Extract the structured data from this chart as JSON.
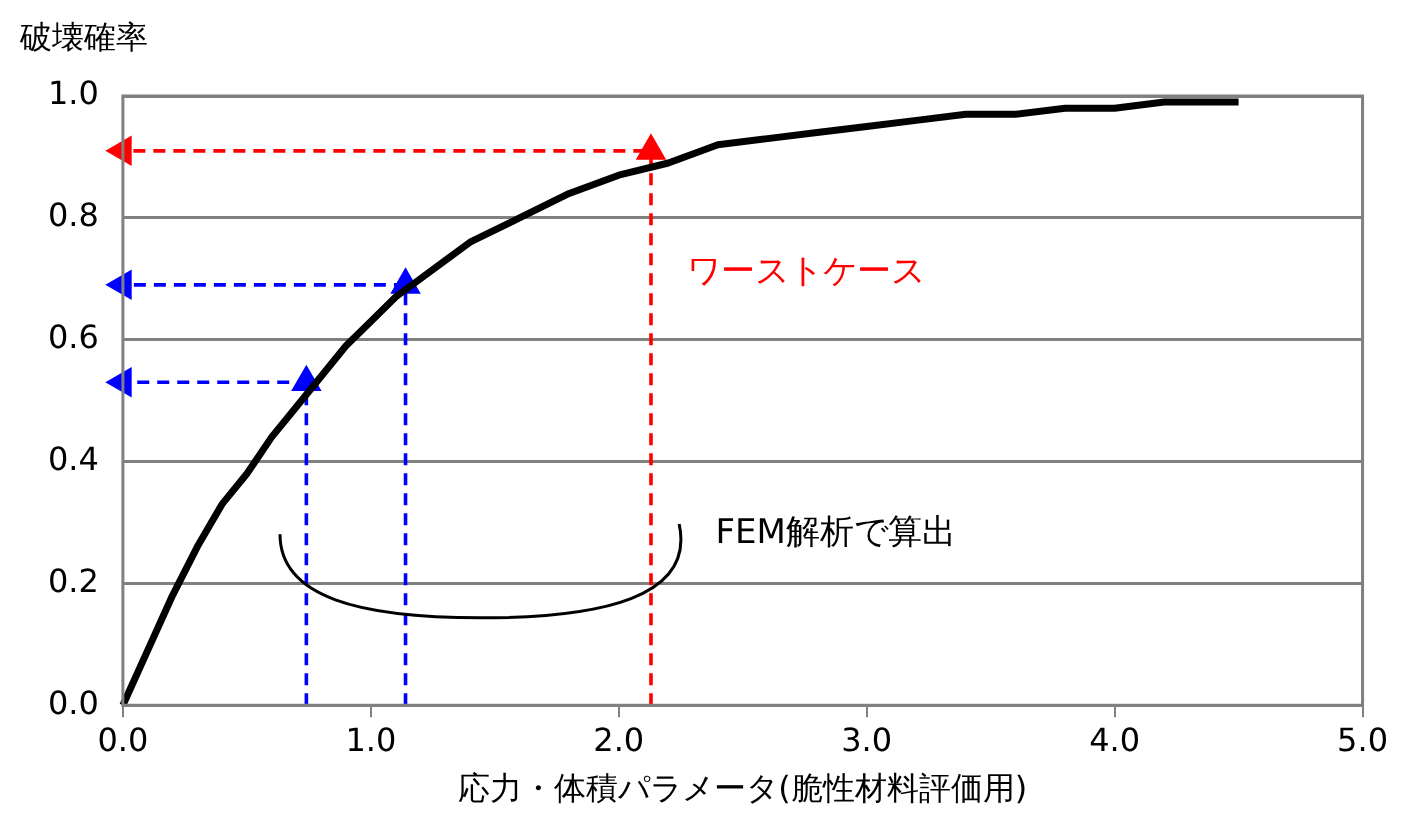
{
  "chart_data": {
    "type": "line",
    "xlabel": "応力・体積パラメータ(脆性材料評価用)",
    "ylabel": "破壊確率",
    "xlim": [
      0,
      5
    ],
    "ylim": [
      0,
      1
    ],
    "xticks": [
      {
        "value": 0,
        "label": "0.0"
      },
      {
        "value": 1,
        "label": "1.0"
      },
      {
        "value": 2,
        "label": "2.0"
      },
      {
        "value": 3,
        "label": "3.0"
      },
      {
        "value": 4,
        "label": "4.0"
      },
      {
        "value": 5,
        "label": "5.0"
      }
    ],
    "yticks": [
      {
        "value": 0,
        "label": "0.0"
      },
      {
        "value": 0.2,
        "label": "0.2"
      },
      {
        "value": 0.4,
        "label": "0.4"
      },
      {
        "value": 0.6,
        "label": "0.6"
      },
      {
        "value": 0.8,
        "label": "0.8"
      },
      {
        "value": 1,
        "label": "1.0"
      }
    ],
    "grid": "y",
    "legend": false,
    "marker": "none",
    "series": [
      {
        "color": "#000000",
        "line_style": "solid",
        "x": [
          0,
          0.1,
          0.2,
          0.3,
          0.4,
          0.5,
          0.6,
          0.7,
          0.8,
          0.9,
          1.0,
          1.1,
          1.2,
          1.4,
          1.6,
          1.8,
          2.0,
          2.2,
          2.4,
          2.6,
          2.8,
          3.0,
          3.2,
          3.4,
          3.6,
          3.8,
          4.0,
          4.2,
          4.5
        ],
        "values": [
          0,
          0.09,
          0.18,
          0.26,
          0.33,
          0.38,
          0.44,
          0.49,
          0.54,
          0.59,
          0.63,
          0.67,
          0.7,
          0.76,
          0.8,
          0.84,
          0.87,
          0.89,
          0.92,
          0.93,
          0.94,
          0.95,
          0.96,
          0.97,
          0.97,
          0.98,
          0.98,
          0.99,
          0.99
        ]
      },
      {
        "color": "#ff0000",
        "line_style": "dashed",
        "marker": "triangle",
        "x": [
          2.13,
          2.13,
          0
        ],
        "values": [
          0,
          0.91,
          0.91
        ]
      },
      {
        "color": "#0000ff",
        "line_style": "dashed",
        "marker": "triangle",
        "x": [
          0.74,
          0.74,
          0
        ],
        "values": [
          0,
          0.53,
          0.53
        ]
      },
      {
        "color": "#0000ff",
        "line_style": "dashed",
        "marker": "triangle",
        "x": [
          1.14,
          1.14,
          0
        ],
        "values": [
          0,
          0.69,
          0.69
        ]
      }
    ],
    "annotations": [
      "ワーストケース",
      "FEM解析で算出"
    ]
  }
}
